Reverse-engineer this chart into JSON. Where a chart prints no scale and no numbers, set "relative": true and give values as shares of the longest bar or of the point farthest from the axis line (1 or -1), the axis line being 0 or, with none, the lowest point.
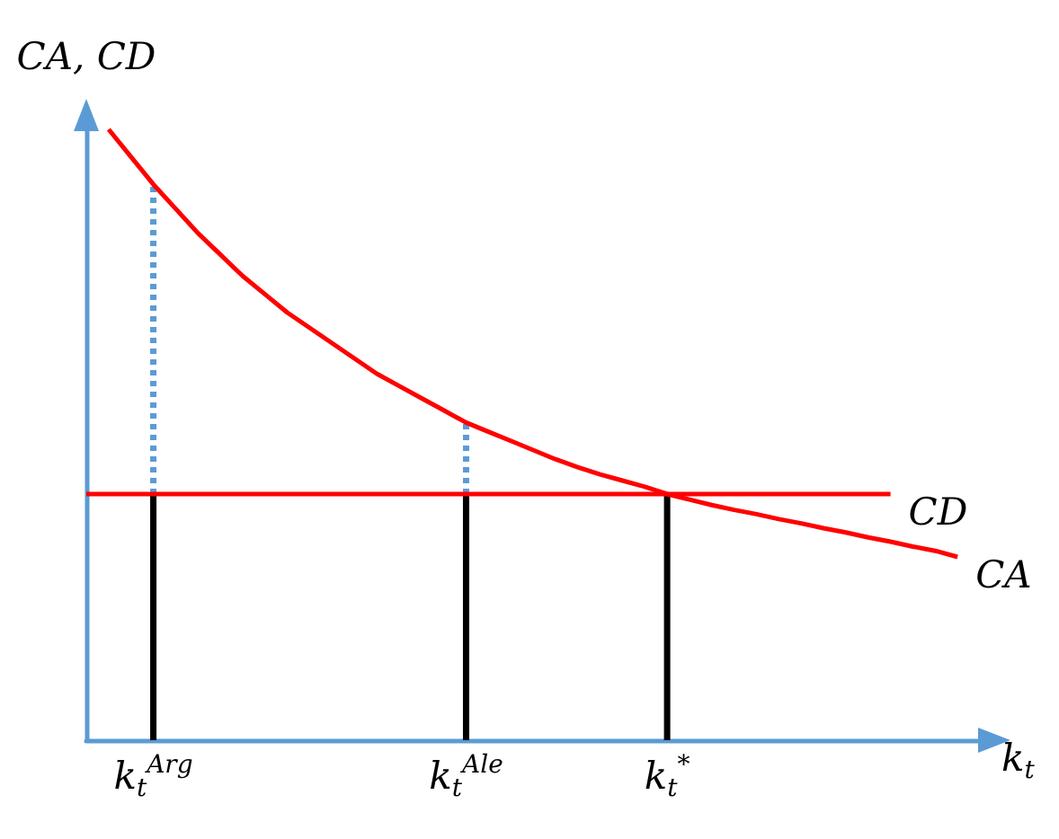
{
  "chart_data": {
    "type": "line",
    "relative": true,
    "xlabel": "k$_{t}$",
    "ylabel": "CA, CD",
    "categories": [
      null,
      null,
      null,
      "k$_{t}$$^{Arg}$",
      null,
      null,
      null,
      null,
      null,
      null,
      null,
      null,
      null,
      null,
      null,
      null,
      null,
      "k$_{t}$$^{Ale}$",
      null,
      null,
      null,
      null,
      null,
      null,
      null,
      null,
      "k$_{t}$$^{*}$",
      null,
      null,
      null,
      null,
      null,
      null,
      null,
      null,
      null,
      null,
      null,
      null,
      null,
      null
    ],
    "series": [
      {
        "name": "CA",
        "color": "#ff0000",
        "line_style": "solid",
        "values": [
          null,
          1.0,
          0.955,
          0.91,
          0.87,
          0.83,
          0.795,
          0.76,
          0.73,
          0.7,
          0.675,
          0.65,
          0.625,
          0.6,
          0.58,
          0.56,
          0.54,
          0.52,
          0.505,
          0.49,
          0.475,
          0.46,
          0.447,
          0.435,
          0.425,
          0.415,
          0.403,
          0.394,
          0.385,
          0.377,
          0.37,
          0.362,
          0.355,
          0.347,
          0.34,
          0.332,
          0.325,
          0.317,
          0.31,
          0.3,
          null
        ]
      },
      {
        "name": "CD",
        "color": "#ff0000",
        "line_style": "solid",
        "values": [
          0.403,
          0.403,
          0.403,
          0.403,
          0.403,
          0.403,
          0.403,
          0.403,
          0.403,
          0.403,
          0.403,
          0.403,
          0.403,
          0.403,
          0.403,
          0.403,
          0.403,
          0.403,
          0.403,
          0.403,
          0.403,
          0.403,
          0.403,
          0.403,
          0.403,
          0.403,
          0.403,
          0.403,
          0.403,
          0.403,
          0.403,
          0.403,
          0.403,
          0.403,
          0.403,
          0.403,
          0.403,
          null,
          null,
          null,
          null
        ]
      },
      {
        "color": "#000000",
        "line_style": "solid",
        "x": [
          "k$_{t}$$^{Arg}$",
          "k$_{t}$$^{Arg}$"
        ],
        "values": [
          0,
          0.403
        ]
      },
      {
        "color": "#000000",
        "line_style": "solid",
        "x": [
          "k$_{t}$$^{Ale}$",
          "k$_{t}$$^{Ale}$"
        ],
        "values": [
          0,
          0.403
        ]
      },
      {
        "color": "#000000",
        "line_style": "solid",
        "x": [
          "k$_{t}$$^{*}$",
          "k$_{t}$$^{*}$"
        ],
        "values": [
          0,
          0.403
        ]
      },
      {
        "color": "#5b9bd5",
        "line_style": "dotted",
        "x": [
          "k$_{t}$$^{Arg}$",
          "k$_{t}$$^{Arg}$"
        ],
        "values": [
          0.403,
          0.91
        ]
      },
      {
        "color": "#5b9bd5",
        "line_style": "dotted",
        "x": [
          "k$_{t}$$^{Ale}$",
          "k$_{t}$$^{Ale}$"
        ],
        "values": [
          0.403,
          0.52
        ]
      }
    ],
    "grid": false,
    "legend": false,
    "marker": "none"
  }
}
